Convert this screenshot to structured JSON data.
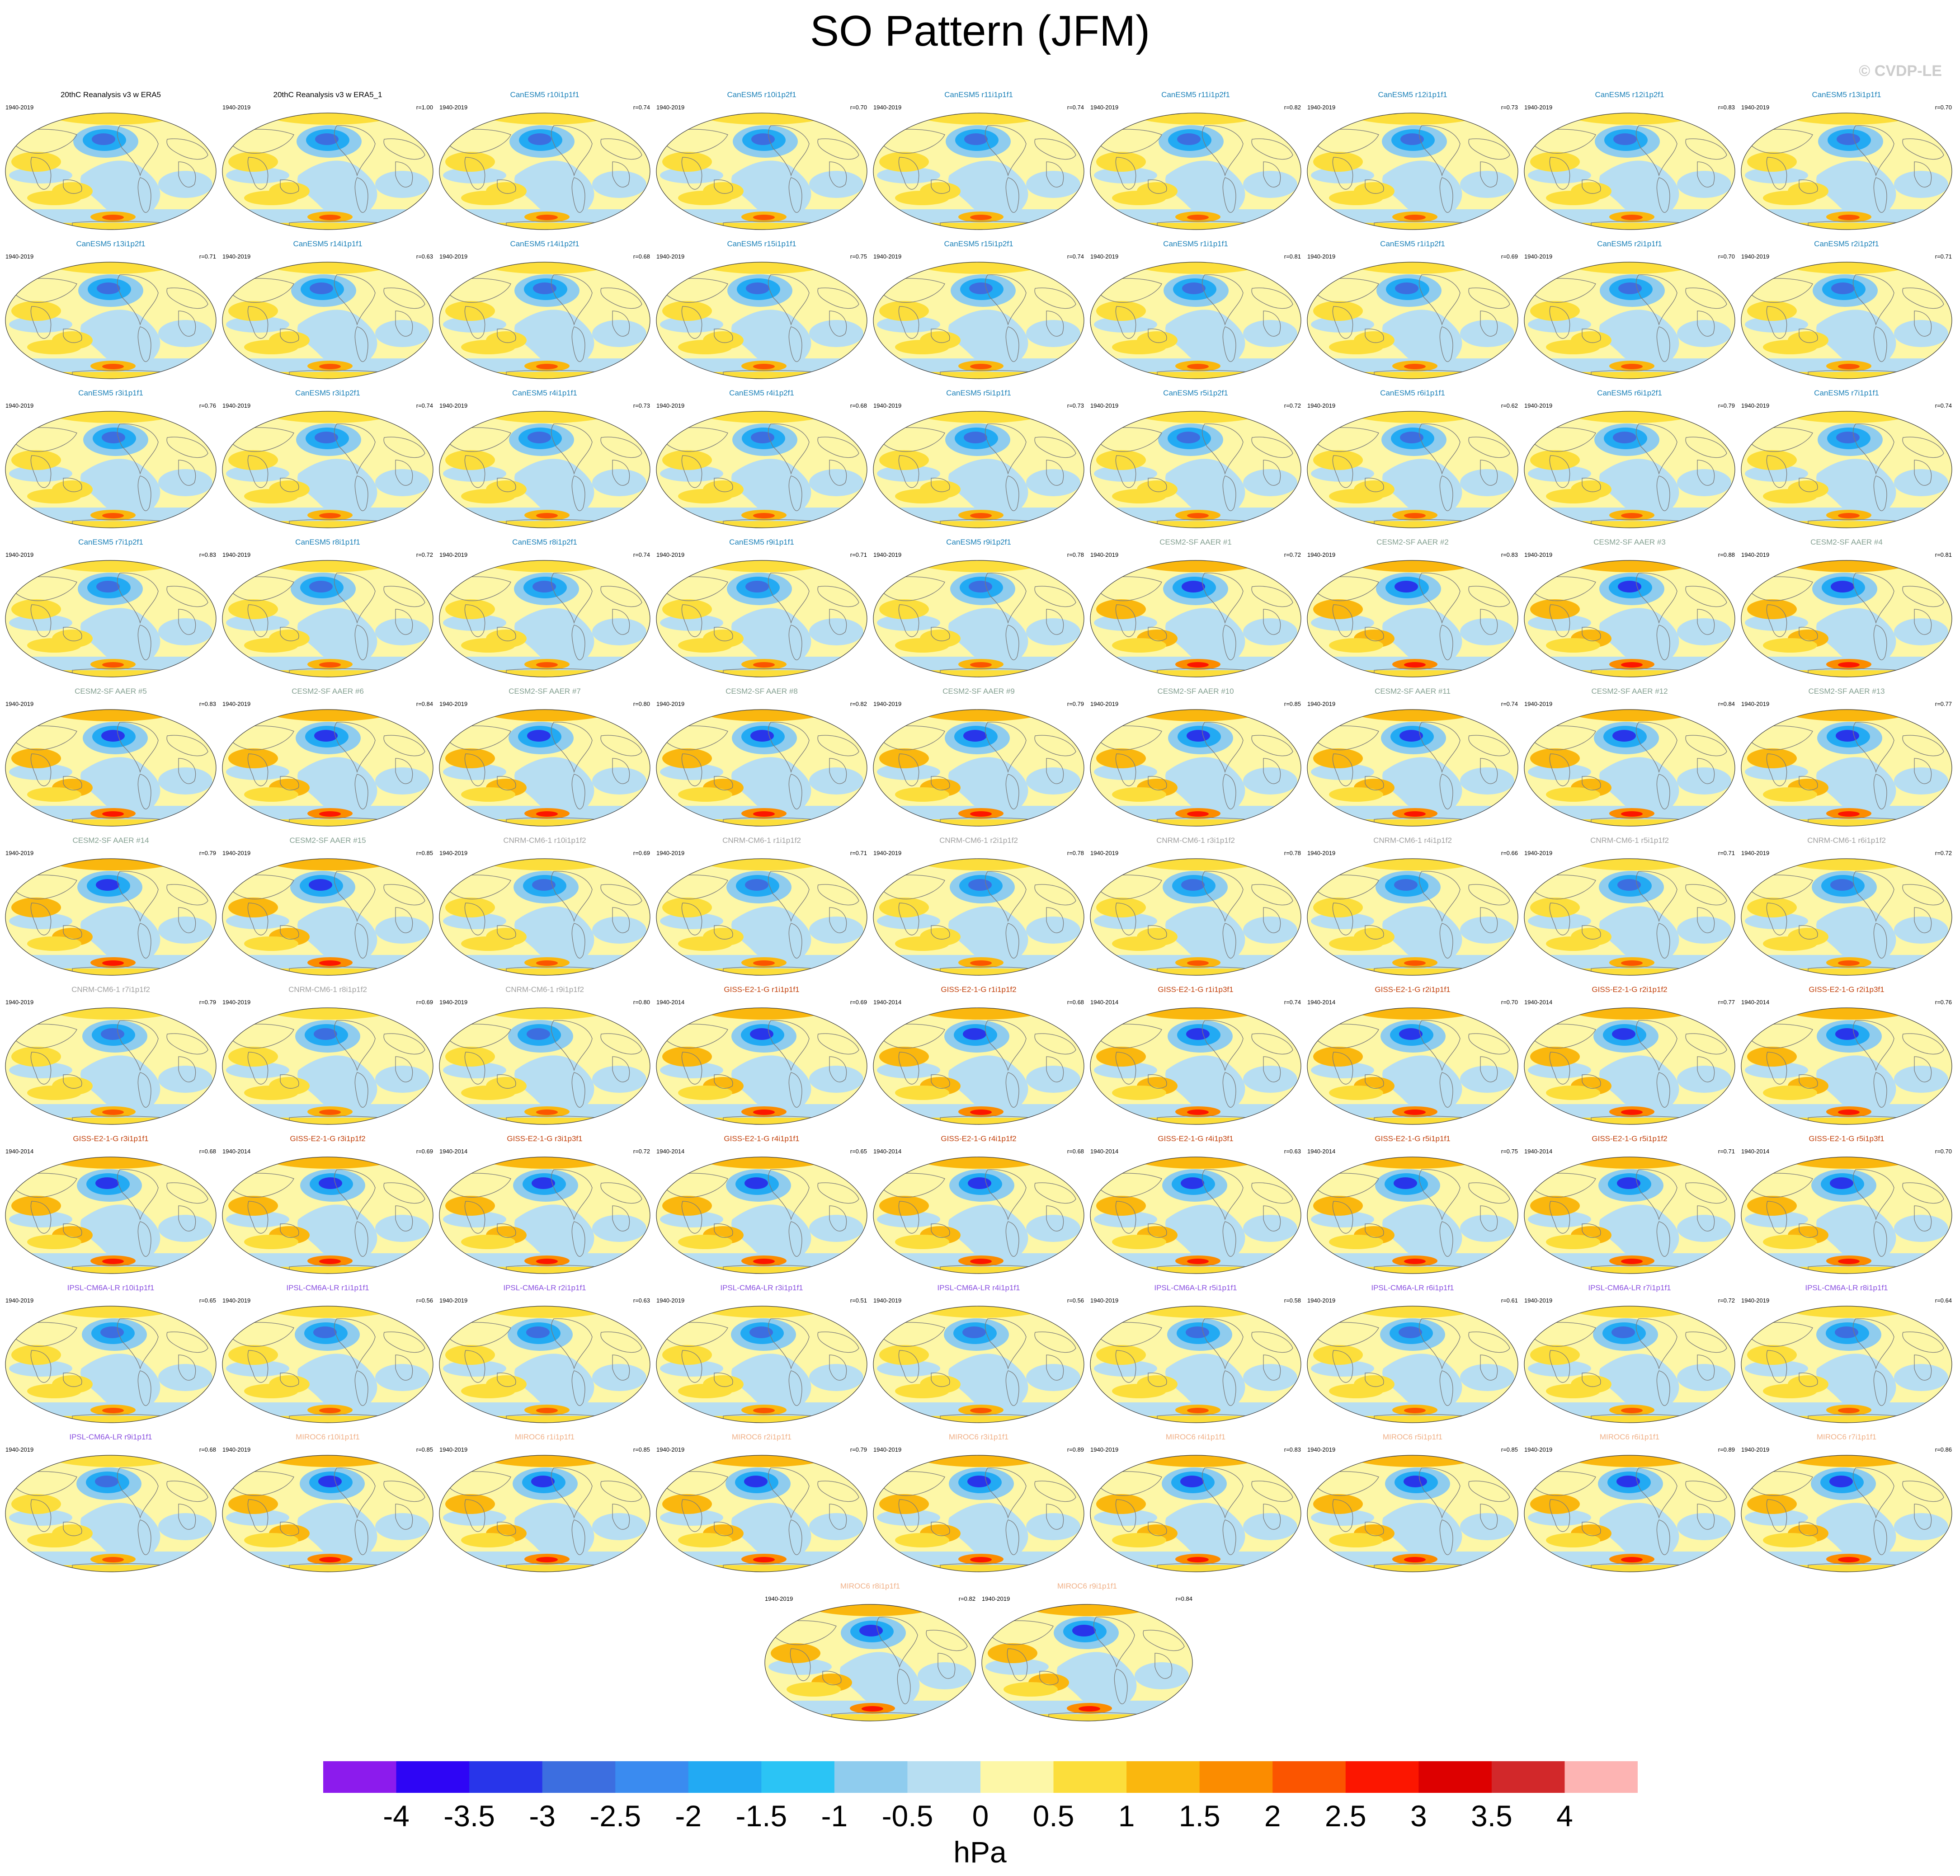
{
  "title": "SO Pattern (JFM)",
  "copyright": "© CVDP-LE",
  "units": "hPa",
  "colorbar": {
    "ticks": [
      "-4",
      "-3.5",
      "-3",
      "-2.5",
      "-2",
      "-1.5",
      "-1",
      "-0.5",
      "0",
      "0.5",
      "1",
      "1.5",
      "2",
      "2.5",
      "3",
      "3.5",
      "4"
    ],
    "colors": [
      "#8c1bed",
      "#2e05f5",
      "#2835ea",
      "#3c6ee0",
      "#3a8bf0",
      "#22aaf3",
      "#2bc4f5",
      "#8fccee",
      "#b7def2",
      "#fdf7a7",
      "#fcde3b",
      "#fab70e",
      "#fb8c00",
      "#fb5500",
      "#fc1600",
      "#dd0000",
      "#d2282a",
      "#fdb4b3"
    ]
  },
  "title_colors": {
    "obs": "#000000",
    "CanESM5": "#1a80b8",
    "CESM2-SF AAER": "#84a091",
    "CNRM-CM6-1": "#a0a0a0",
    "GISS-E2-1-G": "#c2410c",
    "IPSL-CM6A-LR": "#8a50e0",
    "MIROC6": "#f0b087"
  },
  "panels": [
    {
      "title": "20thC Reanalysis v3 w ERA5",
      "model": "obs",
      "years": "1940-2019",
      "r": ""
    },
    {
      "title": "20thC Reanalysis v3 w ERA5_1",
      "model": "obs",
      "years": "1940-2019",
      "r": "r=1.00"
    },
    {
      "title": "CanESM5 r10i1p1f1",
      "model": "CanESM5",
      "years": "1940-2019",
      "r": "r=0.74"
    },
    {
      "title": "CanESM5 r10i1p2f1",
      "model": "CanESM5",
      "years": "1940-2019",
      "r": "r=0.70"
    },
    {
      "title": "CanESM5 r11i1p1f1",
      "model": "CanESM5",
      "years": "1940-2019",
      "r": "r=0.74"
    },
    {
      "title": "CanESM5 r11i1p2f1",
      "model": "CanESM5",
      "years": "1940-2019",
      "r": "r=0.82"
    },
    {
      "title": "CanESM5 r12i1p1f1",
      "model": "CanESM5",
      "years": "1940-2019",
      "r": "r=0.73"
    },
    {
      "title": "CanESM5 r12i1p2f1",
      "model": "CanESM5",
      "years": "1940-2019",
      "r": "r=0.83"
    },
    {
      "title": "CanESM5 r13i1p1f1",
      "model": "CanESM5",
      "years": "1940-2019",
      "r": "r=0.70"
    },
    {
      "title": "CanESM5 r13i1p2f1",
      "model": "CanESM5",
      "years": "1940-2019",
      "r": "r=0.71"
    },
    {
      "title": "CanESM5 r14i1p1f1",
      "model": "CanESM5",
      "years": "1940-2019",
      "r": "r=0.63"
    },
    {
      "title": "CanESM5 r14i1p2f1",
      "model": "CanESM5",
      "years": "1940-2019",
      "r": "r=0.68"
    },
    {
      "title": "CanESM5 r15i1p1f1",
      "model": "CanESM5",
      "years": "1940-2019",
      "r": "r=0.75"
    },
    {
      "title": "CanESM5 r15i1p2f1",
      "model": "CanESM5",
      "years": "1940-2019",
      "r": "r=0.74"
    },
    {
      "title": "CanESM5 r1i1p1f1",
      "model": "CanESM5",
      "years": "1940-2019",
      "r": "r=0.81"
    },
    {
      "title": "CanESM5 r1i1p2f1",
      "model": "CanESM5",
      "years": "1940-2019",
      "r": "r=0.69"
    },
    {
      "title": "CanESM5 r2i1p1f1",
      "model": "CanESM5",
      "years": "1940-2019",
      "r": "r=0.70"
    },
    {
      "title": "CanESM5 r2i1p2f1",
      "model": "CanESM5",
      "years": "1940-2019",
      "r": "r=0.71"
    },
    {
      "title": "CanESM5 r3i1p1f1",
      "model": "CanESM5",
      "years": "1940-2019",
      "r": "r=0.76"
    },
    {
      "title": "CanESM5 r3i1p2f1",
      "model": "CanESM5",
      "years": "1940-2019",
      "r": "r=0.74"
    },
    {
      "title": "CanESM5 r4i1p1f1",
      "model": "CanESM5",
      "years": "1940-2019",
      "r": "r=0.73"
    },
    {
      "title": "CanESM5 r4i1p2f1",
      "model": "CanESM5",
      "years": "1940-2019",
      "r": "r=0.68"
    },
    {
      "title": "CanESM5 r5i1p1f1",
      "model": "CanESM5",
      "years": "1940-2019",
      "r": "r=0.73"
    },
    {
      "title": "CanESM5 r5i1p2f1",
      "model": "CanESM5",
      "years": "1940-2019",
      "r": "r=0.72"
    },
    {
      "title": "CanESM5 r6i1p1f1",
      "model": "CanESM5",
      "years": "1940-2019",
      "r": "r=0.62"
    },
    {
      "title": "CanESM5 r6i1p2f1",
      "model": "CanESM5",
      "years": "1940-2019",
      "r": "r=0.79"
    },
    {
      "title": "CanESM5 r7i1p1f1",
      "model": "CanESM5",
      "years": "1940-2019",
      "r": "r=0.74"
    },
    {
      "title": "CanESM5 r7i1p2f1",
      "model": "CanESM5",
      "years": "1940-2019",
      "r": "r=0.83"
    },
    {
      "title": "CanESM5 r8i1p1f1",
      "model": "CanESM5",
      "years": "1940-2019",
      "r": "r=0.72"
    },
    {
      "title": "CanESM5 r8i1p2f1",
      "model": "CanESM5",
      "years": "1940-2019",
      "r": "r=0.74"
    },
    {
      "title": "CanESM5 r9i1p1f1",
      "model": "CanESM5",
      "years": "1940-2019",
      "r": "r=0.71"
    },
    {
      "title": "CanESM5 r9i1p2f1",
      "model": "CanESM5",
      "years": "1940-2019",
      "r": "r=0.78"
    },
    {
      "title": "CESM2-SF AAER #1",
      "model": "CESM2-SF AAER",
      "years": "1940-2019",
      "r": "r=0.72"
    },
    {
      "title": "CESM2-SF AAER #2",
      "model": "CESM2-SF AAER",
      "years": "1940-2019",
      "r": "r=0.83"
    },
    {
      "title": "CESM2-SF AAER #3",
      "model": "CESM2-SF AAER",
      "years": "1940-2019",
      "r": "r=0.88"
    },
    {
      "title": "CESM2-SF AAER #4",
      "model": "CESM2-SF AAER",
      "years": "1940-2019",
      "r": "r=0.81"
    },
    {
      "title": "CESM2-SF AAER #5",
      "model": "CESM2-SF AAER",
      "years": "1940-2019",
      "r": "r=0.83"
    },
    {
      "title": "CESM2-SF AAER #6",
      "model": "CESM2-SF AAER",
      "years": "1940-2019",
      "r": "r=0.84"
    },
    {
      "title": "CESM2-SF AAER #7",
      "model": "CESM2-SF AAER",
      "years": "1940-2019",
      "r": "r=0.80"
    },
    {
      "title": "CESM2-SF AAER #8",
      "model": "CESM2-SF AAER",
      "years": "1940-2019",
      "r": "r=0.82"
    },
    {
      "title": "CESM2-SF AAER #9",
      "model": "CESM2-SF AAER",
      "years": "1940-2019",
      "r": "r=0.79"
    },
    {
      "title": "CESM2-SF AAER #10",
      "model": "CESM2-SF AAER",
      "years": "1940-2019",
      "r": "r=0.85"
    },
    {
      "title": "CESM2-SF AAER #11",
      "model": "CESM2-SF AAER",
      "years": "1940-2019",
      "r": "r=0.74"
    },
    {
      "title": "CESM2-SF AAER #12",
      "model": "CESM2-SF AAER",
      "years": "1940-2019",
      "r": "r=0.84"
    },
    {
      "title": "CESM2-SF AAER #13",
      "model": "CESM2-SF AAER",
      "years": "1940-2019",
      "r": "r=0.77"
    },
    {
      "title": "CESM2-SF AAER #14",
      "model": "CESM2-SF AAER",
      "years": "1940-2019",
      "r": "r=0.79"
    },
    {
      "title": "CESM2-SF AAER #15",
      "model": "CESM2-SF AAER",
      "years": "1940-2019",
      "r": "r=0.85"
    },
    {
      "title": "CNRM-CM6-1 r10i1p1f2",
      "model": "CNRM-CM6-1",
      "years": "1940-2019",
      "r": "r=0.69"
    },
    {
      "title": "CNRM-CM6-1 r1i1p1f2",
      "model": "CNRM-CM6-1",
      "years": "1940-2019",
      "r": "r=0.71"
    },
    {
      "title": "CNRM-CM6-1 r2i1p1f2",
      "model": "CNRM-CM6-1",
      "years": "1940-2019",
      "r": "r=0.78"
    },
    {
      "title": "CNRM-CM6-1 r3i1p1f2",
      "model": "CNRM-CM6-1",
      "years": "1940-2019",
      "r": "r=0.78"
    },
    {
      "title": "CNRM-CM6-1 r4i1p1f2",
      "model": "CNRM-CM6-1",
      "years": "1940-2019",
      "r": "r=0.66"
    },
    {
      "title": "CNRM-CM6-1 r5i1p1f2",
      "model": "CNRM-CM6-1",
      "years": "1940-2019",
      "r": "r=0.71"
    },
    {
      "title": "CNRM-CM6-1 r6i1p1f2",
      "model": "CNRM-CM6-1",
      "years": "1940-2019",
      "r": "r=0.72"
    },
    {
      "title": "CNRM-CM6-1 r7i1p1f2",
      "model": "CNRM-CM6-1",
      "years": "1940-2019",
      "r": "r=0.79"
    },
    {
      "title": "CNRM-CM6-1 r8i1p1f2",
      "model": "CNRM-CM6-1",
      "years": "1940-2019",
      "r": "r=0.69"
    },
    {
      "title": "CNRM-CM6-1 r9i1p1f2",
      "model": "CNRM-CM6-1",
      "years": "1940-2019",
      "r": "r=0.80"
    },
    {
      "title": "GISS-E2-1-G r1i1p1f1",
      "model": "GISS-E2-1-G",
      "years": "1940-2014",
      "r": "r=0.69"
    },
    {
      "title": "GISS-E2-1-G r1i1p1f2",
      "model": "GISS-E2-1-G",
      "years": "1940-2014",
      "r": "r=0.68"
    },
    {
      "title": "GISS-E2-1-G r1i1p3f1",
      "model": "GISS-E2-1-G",
      "years": "1940-2014",
      "r": "r=0.74"
    },
    {
      "title": "GISS-E2-1-G r2i1p1f1",
      "model": "GISS-E2-1-G",
      "years": "1940-2014",
      "r": "r=0.70"
    },
    {
      "title": "GISS-E2-1-G r2i1p1f2",
      "model": "GISS-E2-1-G",
      "years": "1940-2014",
      "r": "r=0.77"
    },
    {
      "title": "GISS-E2-1-G r2i1p3f1",
      "model": "GISS-E2-1-G",
      "years": "1940-2014",
      "r": "r=0.76"
    },
    {
      "title": "GISS-E2-1-G r3i1p1f1",
      "model": "GISS-E2-1-G",
      "years": "1940-2014",
      "r": "r=0.68"
    },
    {
      "title": "GISS-E2-1-G r3i1p1f2",
      "model": "GISS-E2-1-G",
      "years": "1940-2014",
      "r": "r=0.69"
    },
    {
      "title": "GISS-E2-1-G r3i1p3f1",
      "model": "GISS-E2-1-G",
      "years": "1940-2014",
      "r": "r=0.72"
    },
    {
      "title": "GISS-E2-1-G r4i1p1f1",
      "model": "GISS-E2-1-G",
      "years": "1940-2014",
      "r": "r=0.65"
    },
    {
      "title": "GISS-E2-1-G r4i1p1f2",
      "model": "GISS-E2-1-G",
      "years": "1940-2014",
      "r": "r=0.68"
    },
    {
      "title": "GISS-E2-1-G r4i1p3f1",
      "model": "GISS-E2-1-G",
      "years": "1940-2014",
      "r": "r=0.63"
    },
    {
      "title": "GISS-E2-1-G r5i1p1f1",
      "model": "GISS-E2-1-G",
      "years": "1940-2014",
      "r": "r=0.75"
    },
    {
      "title": "GISS-E2-1-G r5i1p1f2",
      "model": "GISS-E2-1-G",
      "years": "1940-2014",
      "r": "r=0.71"
    },
    {
      "title": "GISS-E2-1-G r5i1p3f1",
      "model": "GISS-E2-1-G",
      "years": "1940-2014",
      "r": "r=0.70"
    },
    {
      "title": "IPSL-CM6A-LR r10i1p1f1",
      "model": "IPSL-CM6A-LR",
      "years": "1940-2019",
      "r": "r=0.65"
    },
    {
      "title": "IPSL-CM6A-LR r1i1p1f1",
      "model": "IPSL-CM6A-LR",
      "years": "1940-2019",
      "r": "r=0.56"
    },
    {
      "title": "IPSL-CM6A-LR r2i1p1f1",
      "model": "IPSL-CM6A-LR",
      "years": "1940-2019",
      "r": "r=0.63"
    },
    {
      "title": "IPSL-CM6A-LR r3i1p1f1",
      "model": "IPSL-CM6A-LR",
      "years": "1940-2019",
      "r": "r=0.51"
    },
    {
      "title": "IPSL-CM6A-LR r4i1p1f1",
      "model": "IPSL-CM6A-LR",
      "years": "1940-2019",
      "r": "r=0.56"
    },
    {
      "title": "IPSL-CM6A-LR r5i1p1f1",
      "model": "IPSL-CM6A-LR",
      "years": "1940-2019",
      "r": "r=0.58"
    },
    {
      "title": "IPSL-CM6A-LR r6i1p1f1",
      "model": "IPSL-CM6A-LR",
      "years": "1940-2019",
      "r": "r=0.61"
    },
    {
      "title": "IPSL-CM6A-LR r7i1p1f1",
      "model": "IPSL-CM6A-LR",
      "years": "1940-2019",
      "r": "r=0.72"
    },
    {
      "title": "IPSL-CM6A-LR r8i1p1f1",
      "model": "IPSL-CM6A-LR",
      "years": "1940-2019",
      "r": "r=0.64"
    },
    {
      "title": "IPSL-CM6A-LR r9i1p1f1",
      "model": "IPSL-CM6A-LR",
      "years": "1940-2019",
      "r": "r=0.68"
    },
    {
      "title": "MIROC6 r10i1p1f1",
      "model": "MIROC6",
      "years": "1940-2019",
      "r": "r=0.85"
    },
    {
      "title": "MIROC6 r1i1p1f1",
      "model": "MIROC6",
      "years": "1940-2019",
      "r": "r=0.85"
    },
    {
      "title": "MIROC6 r2i1p1f1",
      "model": "MIROC6",
      "years": "1940-2019",
      "r": "r=0.79"
    },
    {
      "title": "MIROC6 r3i1p1f1",
      "model": "MIROC6",
      "years": "1940-2019",
      "r": "r=0.89"
    },
    {
      "title": "MIROC6 r4i1p1f1",
      "model": "MIROC6",
      "years": "1940-2019",
      "r": "r=0.83"
    },
    {
      "title": "MIROC6 r5i1p1f1",
      "model": "MIROC6",
      "years": "1940-2019",
      "r": "r=0.85"
    },
    {
      "title": "MIROC6 r6i1p1f1",
      "model": "MIROC6",
      "years": "1940-2019",
      "r": "r=0.89"
    },
    {
      "title": "MIROC6 r7i1p1f1",
      "model": "MIROC6",
      "years": "1940-2019",
      "r": "r=0.86"
    },
    {
      "title": "MIROC6 r8i1p1f1",
      "model": "MIROC6",
      "years": "1940-2019",
      "r": "r=0.82"
    },
    {
      "title": "MIROC6 r9i1p1f1",
      "model": "MIROC6",
      "years": "1940-2019",
      "r": "r=0.84"
    }
  ]
}
